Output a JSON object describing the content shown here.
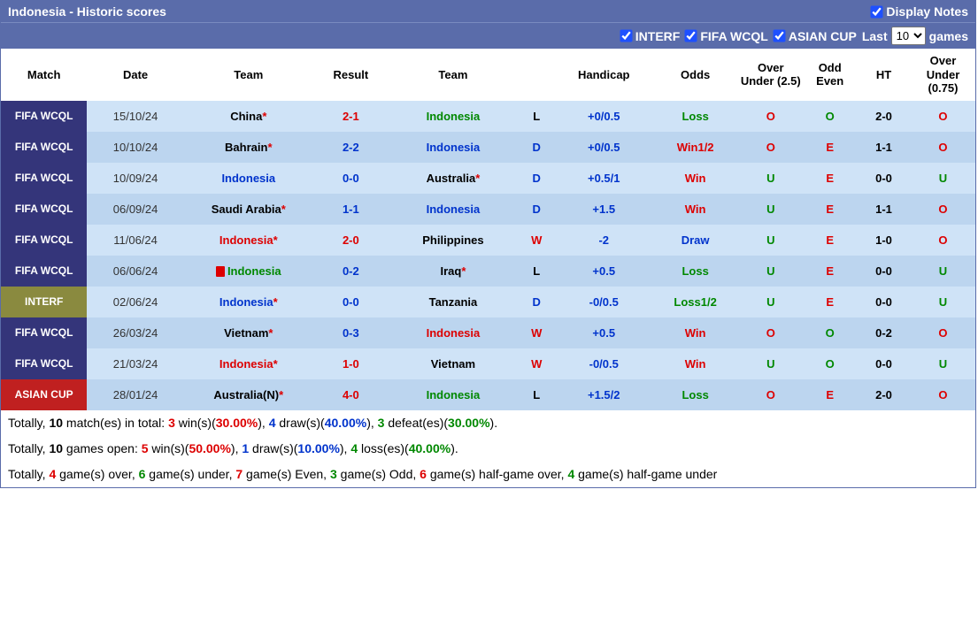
{
  "header": {
    "title": "Indonesia - Historic scores",
    "display_notes": "Display Notes"
  },
  "filters": {
    "f1": "INTERF",
    "f2": "FIFA WCQL",
    "f3": "ASIAN CUP",
    "last_pre": "Last",
    "last_post": "games",
    "last_sel": "10"
  },
  "cols": {
    "match": "Match",
    "date": "Date",
    "team1": "Team",
    "result": "Result",
    "team2": "Team",
    "wdl": "",
    "handicap": "Handicap",
    "odds": "Odds",
    "ou25": "Over Under (2.5)",
    "oe": "Odd Even",
    "ht": "HT",
    "ou075": "Over Under (0.75)"
  },
  "rows": [
    {
      "m": "FIFA WCQL",
      "mc": "m-wcql",
      "d": "15/10/24",
      "t1": "China",
      "t1c": "c-black",
      "t1a": "*",
      "r": "2-1",
      "rc": "c-red",
      "t2": "Indonesia",
      "t2c": "c-green",
      "t2a": "",
      "w": "L",
      "wc": "c-black",
      "h": "+0/0.5",
      "o": "Loss",
      "oc": "c-green",
      "ou": "O",
      "ouc": "c-red",
      "oe": "O",
      "oec": "c-green",
      "ht": "2-0",
      "u7": "O",
      "u7c": "c-red",
      "rb": "r-light",
      "rc1": ""
    },
    {
      "m": "FIFA WCQL",
      "mc": "m-wcql",
      "d": "10/10/24",
      "t1": "Bahrain",
      "t1c": "c-black",
      "t1a": "*",
      "r": "2-2",
      "rc": "c-blue",
      "t2": "Indonesia",
      "t2c": "c-blue",
      "t2a": "",
      "w": "D",
      "wc": "c-blue",
      "h": "+0/0.5",
      "o": "Win1/2",
      "oc": "c-red",
      "ou": "O",
      "ouc": "c-red",
      "oe": "E",
      "oec": "c-red",
      "ht": "1-1",
      "u7": "O",
      "u7c": "c-red",
      "rb": "r-dark",
      "rc1": ""
    },
    {
      "m": "FIFA WCQL",
      "mc": "m-wcql",
      "d": "10/09/24",
      "t1": "Indonesia",
      "t1c": "c-blue",
      "t1a": "",
      "r": "0-0",
      "rc": "c-blue",
      "t2": "Australia",
      "t2c": "c-black",
      "t2a": "*",
      "w": "D",
      "wc": "c-blue",
      "h": "+0.5/1",
      "o": "Win",
      "oc": "c-red",
      "ou": "U",
      "ouc": "c-green",
      "oe": "E",
      "oec": "c-red",
      "ht": "0-0",
      "u7": "U",
      "u7c": "c-green",
      "rb": "r-light",
      "rc1": ""
    },
    {
      "m": "FIFA WCQL",
      "mc": "m-wcql",
      "d": "06/09/24",
      "t1": "Saudi Arabia",
      "t1c": "c-black",
      "t1a": "*",
      "r": "1-1",
      "rc": "c-blue",
      "t2": "Indonesia",
      "t2c": "c-blue",
      "t2a": "",
      "w": "D",
      "wc": "c-blue",
      "h": "+1.5",
      "o": "Win",
      "oc": "c-red",
      "ou": "U",
      "ouc": "c-green",
      "oe": "E",
      "oec": "c-red",
      "ht": "1-1",
      "u7": "O",
      "u7c": "c-red",
      "rb": "r-dark",
      "rc1": ""
    },
    {
      "m": "FIFA WCQL",
      "mc": "m-wcql",
      "d": "11/06/24",
      "t1": "Indonesia",
      "t1c": "c-red",
      "t1a": "*",
      "r": "2-0",
      "rc": "c-red",
      "t2": "Philippines",
      "t2c": "c-black",
      "t2a": "",
      "w": "W",
      "wc": "c-red",
      "h": "-2",
      "o": "Draw",
      "oc": "c-blue",
      "ou": "U",
      "ouc": "c-green",
      "oe": "E",
      "oec": "c-red",
      "ht": "1-0",
      "u7": "O",
      "u7c": "c-red",
      "rb": "r-light",
      "rc1": ""
    },
    {
      "m": "FIFA WCQL",
      "mc": "m-wcql",
      "d": "06/06/24",
      "t1": "Indonesia",
      "t1c": "c-green",
      "t1a": "",
      "r": "0-2",
      "rc": "c-blue",
      "t2": "Iraq",
      "t2c": "c-black",
      "t2a": "*",
      "w": "L",
      "wc": "c-black",
      "h": "+0.5",
      "o": "Loss",
      "oc": "c-green",
      "ou": "U",
      "ouc": "c-green",
      "oe": "E",
      "oec": "c-red",
      "ht": "0-0",
      "u7": "U",
      "u7c": "c-green",
      "rb": "r-dark",
      "rc1": "1"
    },
    {
      "m": "INTERF",
      "mc": "m-interf",
      "d": "02/06/24",
      "t1": "Indonesia",
      "t1c": "c-blue",
      "t1a": "*",
      "r": "0-0",
      "rc": "c-blue",
      "t2": "Tanzania",
      "t2c": "c-black",
      "t2a": "",
      "w": "D",
      "wc": "c-blue",
      "h": "-0/0.5",
      "o": "Loss1/2",
      "oc": "c-green",
      "ou": "U",
      "ouc": "c-green",
      "oe": "E",
      "oec": "c-red",
      "ht": "0-0",
      "u7": "U",
      "u7c": "c-green",
      "rb": "r-light",
      "rc1": ""
    },
    {
      "m": "FIFA WCQL",
      "mc": "m-wcql",
      "d": "26/03/24",
      "t1": "Vietnam",
      "t1c": "c-black",
      "t1a": "*",
      "r": "0-3",
      "rc": "c-blue",
      "t2": "Indonesia",
      "t2c": "c-red",
      "t2a": "",
      "w": "W",
      "wc": "c-red",
      "h": "+0.5",
      "o": "Win",
      "oc": "c-red",
      "ou": "O",
      "ouc": "c-red",
      "oe": "O",
      "oec": "c-green",
      "ht": "0-2",
      "u7": "O",
      "u7c": "c-red",
      "rb": "r-dark",
      "rc1": ""
    },
    {
      "m": "FIFA WCQL",
      "mc": "m-wcql",
      "d": "21/03/24",
      "t1": "Indonesia",
      "t1c": "c-red",
      "t1a": "*",
      "r": "1-0",
      "rc": "c-red",
      "t2": "Vietnam",
      "t2c": "c-black",
      "t2a": "",
      "w": "W",
      "wc": "c-red",
      "h": "-0/0.5",
      "o": "Win",
      "oc": "c-red",
      "ou": "U",
      "ouc": "c-green",
      "oe": "O",
      "oec": "c-green",
      "ht": "0-0",
      "u7": "U",
      "u7c": "c-green",
      "rb": "r-light",
      "rc1": ""
    },
    {
      "m": "ASIAN CUP",
      "mc": "m-asian",
      "d": "28/01/24",
      "t1": "Australia(N)",
      "t1c": "c-black",
      "t1a": "*",
      "r": "4-0",
      "rc": "c-red",
      "t2": "Indonesia",
      "t2c": "c-green",
      "t2a": "",
      "w": "L",
      "wc": "c-black",
      "h": "+1.5/2",
      "o": "Loss",
      "oc": "c-green",
      "ou": "O",
      "ouc": "c-red",
      "oe": "E",
      "oec": "c-red",
      "ht": "2-0",
      "u7": "O",
      "u7c": "c-red",
      "rb": "r-dark",
      "rc1": ""
    }
  ],
  "summary": {
    "l1": {
      "p1": "Totally, ",
      "b1": "10",
      "p2": " match(es) in total: ",
      "b2": "3",
      "p3": " win(s)(",
      "b3": "30.00%",
      "p4": "), ",
      "b4": "4",
      "p5": " draw(s)(",
      "b5": "40.00%",
      "p6": "), ",
      "b6": "3",
      "p7": " defeat(es)(",
      "b7": "30.00%",
      "p8": ")."
    },
    "l2": {
      "p1": "Totally, ",
      "b1": "10",
      "p2": " games open: ",
      "b2": "5",
      "p3": " win(s)(",
      "b3": "50.00%",
      "p4": "), ",
      "b4": "1",
      "p5": " draw(s)(",
      "b5": "10.00%",
      "p6": "), ",
      "b6": "4",
      "p7": " loss(es)(",
      "b7": "40.00%",
      "p8": ")."
    },
    "l3": {
      "p1": "Totally, ",
      "b1": "4",
      "p2": " game(s) over, ",
      "b2": "6",
      "p3": " game(s) under, ",
      "b3": "7",
      "p4": " game(s) Even, ",
      "b4": "3",
      "p5": " game(s) Odd, ",
      "b5": "6",
      "p6": " game(s) half-game over, ",
      "b6": "4",
      "p7": " game(s) half-game under"
    }
  }
}
